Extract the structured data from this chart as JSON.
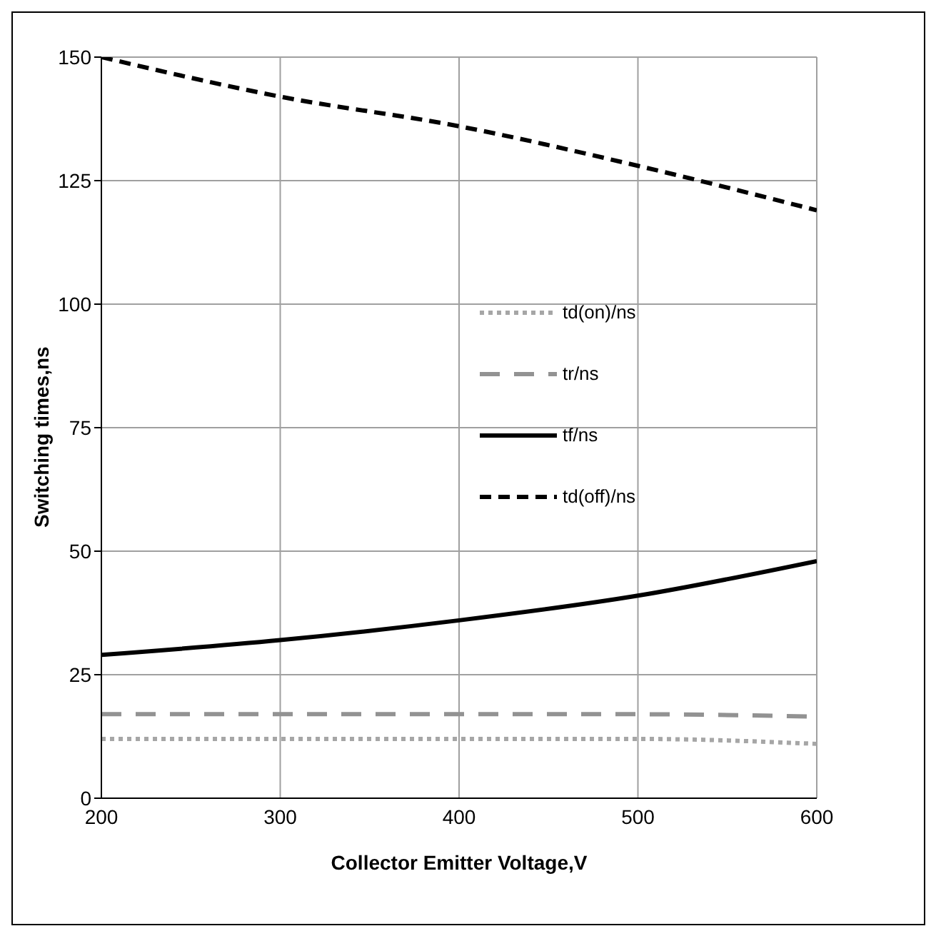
{
  "chart_data": {
    "type": "line",
    "xlabel": "Collector Emitter Voltage,V",
    "ylabel": "Switching times,ns",
    "x": [
      200,
      300,
      400,
      500,
      600
    ],
    "series": [
      {
        "name": "td(on)/ns",
        "color": "#a6a6a6",
        "line_style": "dotted",
        "values": [
          12,
          12,
          12,
          12,
          11
        ]
      },
      {
        "name": "tr/ns",
        "color": "#929292",
        "line_style": "dashed",
        "values": [
          17,
          17,
          17,
          17,
          16.5
        ]
      },
      {
        "name": "tf/ns",
        "color": "#000000",
        "line_style": "solid",
        "values": [
          29,
          32,
          36,
          41,
          48
        ]
      },
      {
        "name": "td(off)/ns",
        "color": "#000000",
        "line_style": "dashed",
        "values": [
          150,
          142,
          136,
          128,
          119
        ]
      }
    ],
    "xlim": [
      200,
      600
    ],
    "xticks": [
      200,
      300,
      400,
      500,
      600
    ],
    "ylim": [
      0,
      150
    ],
    "yticks": [
      0,
      25,
      50,
      75,
      100,
      125,
      150
    ],
    "grid": true,
    "legend": "right",
    "marker": "none"
  }
}
